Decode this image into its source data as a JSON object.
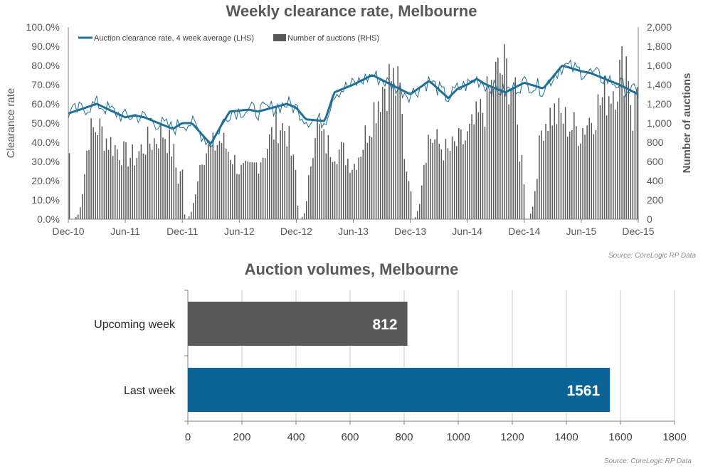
{
  "charts": {
    "top": {
      "title": "Weekly clearance rate, Melbourne",
      "source": "Source: CoreLogic  RP Data"
    },
    "bottom": {
      "title": "Auction volumes, Melbourne",
      "source": "Source: CoreLogic  RP Data"
    }
  },
  "colors": {
    "line": "#1f6f97",
    "bars_weekly": "#595959",
    "upcoming_bar": "#595959",
    "last_week_bar": "#0b6396",
    "grid": "#c8c8c8",
    "text": "#595959"
  },
  "chart_data": [
    {
      "type": "bar+line",
      "title": "Weekly clearance rate, Melbourne",
      "xlabel": "",
      "ylabel": "Clearance rate",
      "y2label": "Number of auctions",
      "ylim": [
        0,
        100
      ],
      "y2lim": [
        0,
        2000
      ],
      "x_tick_labels": [
        "Dec-10",
        "Jun-11",
        "Dec-11",
        "Jun-12",
        "Dec-12",
        "Jun-13",
        "Dec-13",
        "Jun-14",
        "Dec-14",
        "Jun-15",
        "Dec-15"
      ],
      "y_tick_labels": [
        "0.0%",
        "10.0%",
        "20.0%",
        "30.0%",
        "40.0%",
        "50.0%",
        "60.0%",
        "70.0%",
        "80.0%",
        "90.0%",
        "100.0%"
      ],
      "y2_tick_labels": [
        "0",
        "200",
        "400",
        "600",
        "800",
        "1,000",
        "1,200",
        "1,400",
        "1,600",
        "1,800",
        "2,000"
      ],
      "legend": {
        "placement": "top-left",
        "entries": [
          "Auction clearance rate, 4 week average (LHS)",
          "Number of auctions (RHS)"
        ]
      },
      "series": [
        {
          "name": "Auction clearance rate, 4 week average (LHS)",
          "kind": "line",
          "anchors_x_month_index": [
            0,
            3,
            6,
            7,
            8,
            11,
            12,
            13,
            15,
            16,
            17,
            19,
            20,
            23,
            24,
            25,
            27,
            28,
            29,
            30,
            32,
            34,
            36,
            38,
            40,
            41,
            42,
            43,
            44,
            46,
            48,
            50,
            52,
            54,
            55,
            56,
            58,
            60
          ],
          "anchors_y": [
            55,
            60,
            53,
            54,
            53,
            47,
            50,
            50,
            39,
            48,
            56,
            57,
            56,
            60,
            58,
            52,
            51,
            66,
            68,
            70,
            75,
            70,
            65,
            72,
            63,
            68,
            70,
            73,
            70,
            66,
            71,
            68,
            80,
            77,
            76,
            74,
            70,
            65
          ]
        },
        {
          "name": "Number of auctions (RHS)",
          "kind": "bar",
          "envelope_x_month_index": [
            0,
            0.1,
            0.5,
            1,
            1.5,
            2,
            3,
            4,
            5,
            6,
            7,
            8,
            9,
            10,
            11,
            11.5,
            12,
            12.2,
            12.5,
            13,
            13.5,
            14,
            15,
            16,
            17,
            18,
            19,
            20,
            21,
            22,
            23,
            23.5,
            24,
            24.2,
            24.5,
            25,
            25.5,
            26,
            27,
            28,
            29,
            30,
            31,
            32,
            33,
            34,
            35,
            35.5,
            36,
            36.2,
            36.5,
            37,
            37.5,
            38,
            39,
            40,
            41,
            42,
            43,
            44,
            45,
            46,
            47,
            47.5,
            48,
            48.2,
            48.5,
            49,
            49.5,
            50,
            51,
            52,
            53,
            54,
            55,
            56,
            57,
            58,
            59,
            59.5,
            60
          ],
          "envelope_values": [
            750,
            0,
            0,
            60,
            400,
            950,
            1050,
            900,
            800,
            720,
            700,
            850,
            900,
            1000,
            750,
            450,
            600,
            0,
            0,
            100,
            450,
            750,
            800,
            900,
            750,
            550,
            550,
            650,
            850,
            1100,
            1000,
            700,
            500,
            0,
            0,
            120,
            650,
            1100,
            850,
            800,
            750,
            600,
            850,
            1200,
            1500,
            1600,
            1400,
            600,
            500,
            0,
            0,
            200,
            700,
            950,
            850,
            750,
            850,
            900,
            1100,
            1300,
            1600,
            1700,
            1500,
            800,
            600,
            0,
            0,
            150,
            650,
            1100,
            1200,
            1150,
            1050,
            1000,
            1150,
            1300,
            1450,
            1600,
            1850,
            1100,
            1500
          ]
        }
      ]
    },
    {
      "type": "bar",
      "orientation": "horizontal",
      "title": "Auction volumes, Melbourne",
      "categories": [
        "Upcoming week",
        "Last week"
      ],
      "values": [
        812,
        1561
      ],
      "value_labels": [
        "812",
        "1561"
      ],
      "xlim": [
        0,
        1800
      ],
      "x_tick_labels": [
        "0",
        "200",
        "400",
        "600",
        "800",
        "1000",
        "1200",
        "1400",
        "1600",
        "1800"
      ]
    }
  ]
}
